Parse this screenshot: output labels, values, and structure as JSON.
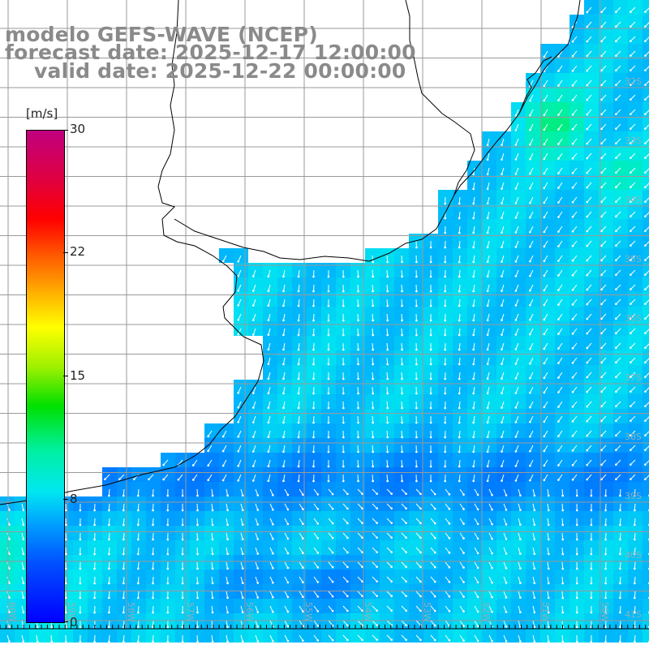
{
  "title": {
    "line1": "modelo GEFS-WAVE (NCEP)",
    "line2": "forecast date: 2025-12-17 12:00:00",
    "line3": "valid date: 2025-12-22 00:00:00"
  },
  "colorbar": {
    "unit": "[m/s]",
    "ticks": [
      "30",
      "22",
      "15",
      "8",
      "0"
    ],
    "colors": [
      "#0000ff",
      "#00a0ff",
      "#00e8f0",
      "#00e000",
      "#ffff00",
      "#ff6000",
      "#ff0000",
      "#c00080"
    ]
  },
  "map": {
    "lat_labels": [
      "32S",
      "33S",
      "34S",
      "35S",
      "36S",
      "37S",
      "38S",
      "39S",
      "40S",
      "41S"
    ],
    "lon_labels": [
      "60W",
      "59W",
      "58W",
      "57W",
      "56W",
      "55W",
      "54W",
      "53W",
      "52W",
      "51W",
      "50W"
    ],
    "colors": {
      "land": "#ffffff",
      "grid": "#9a9a9a",
      "coast": "#000000",
      "arrows": "#ffffff"
    }
  }
}
